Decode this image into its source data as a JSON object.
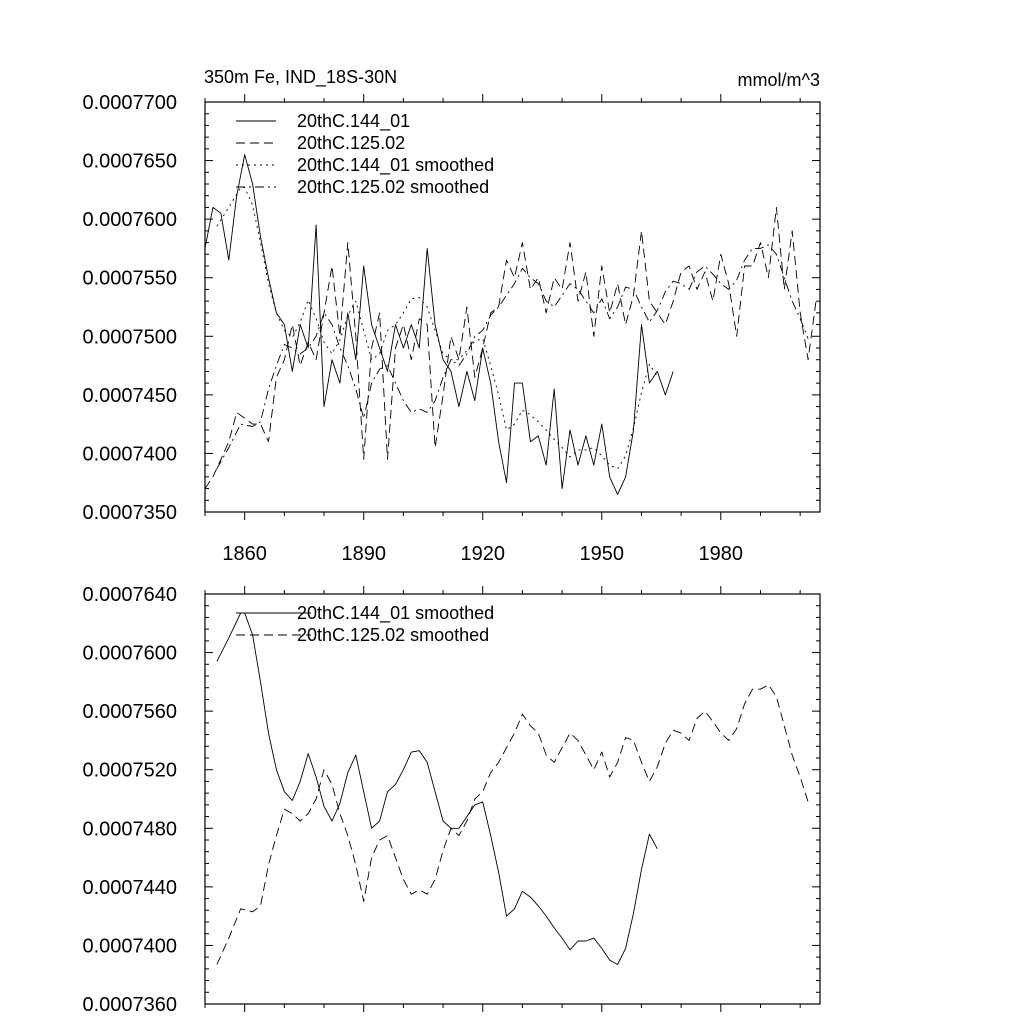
{
  "chart_data": [
    {
      "type": "line",
      "title": "350m Fe, IND_18S-30N",
      "units": "mmol/m^3",
      "xlabel": "",
      "ylabel": "",
      "xlim": [
        1850,
        2005
      ],
      "ylim": [
        0.000735,
        0.00077
      ],
      "x_ticks": [
        "1860",
        "1890",
        "1920",
        "1950",
        "1980"
      ],
      "y_ticks": [
        "0.0007350",
        "0.0007400",
        "0.0007450",
        "0.0007500",
        "0.0007550",
        "0.0007600",
        "0.0007650",
        "0.0007700"
      ],
      "legend_position": "top-left",
      "series": [
        {
          "name": "20thC.144_01",
          "style": "solid",
          "x": [
            1850,
            1852,
            1854,
            1856,
            1858,
            1860,
            1862,
            1864,
            1866,
            1868,
            1870,
            1872,
            1874,
            1876,
            1878,
            1880,
            1882,
            1884,
            1886,
            1888,
            1890,
            1892,
            1894,
            1896,
            1898,
            1900,
            1902,
            1904,
            1906,
            1908,
            1910,
            1912,
            1914,
            1916,
            1918,
            1920,
            1922,
            1924,
            1926,
            1928,
            1930,
            1932,
            1934,
            1936,
            1938,
            1940,
            1942,
            1944,
            1946,
            1948,
            1950,
            1952,
            1954,
            1956,
            1958,
            1960,
            1962,
            1964,
            1966,
            1968
          ],
          "values": [
            0.0007575,
            0.000761,
            0.0007605,
            0.0007565,
            0.000762,
            0.0007655,
            0.000763,
            0.0007585,
            0.000755,
            0.000752,
            0.000751,
            0.000747,
            0.000751,
            0.000749,
            0.0007595,
            0.000744,
            0.000748,
            0.000746,
            0.000752,
            0.000748,
            0.000756,
            0.000751,
            0.000749,
            0.000747,
            0.000751,
            0.000749,
            0.000751,
            0.000749,
            0.0007575,
            0.000751,
            0.000748,
            0.000747,
            0.000744,
            0.000747,
            0.0007445,
            0.000749,
            0.000746,
            0.000741,
            0.0007375,
            0.000746,
            0.000746,
            0.000741,
            0.0007415,
            0.000739,
            0.0007455,
            0.000737,
            0.000742,
            0.000739,
            0.0007415,
            0.000739,
            0.0007425,
            0.000738,
            0.0007365,
            0.000738,
            0.000742,
            0.000751,
            0.000746,
            0.000747,
            0.000745,
            0.000747
          ]
        },
        {
          "name": "20thC.125.02",
          "style": "dashed",
          "x": [
            1850,
            1852,
            1854,
            1856,
            1858,
            1860,
            1862,
            1864,
            1866,
            1868,
            1870,
            1872,
            1874,
            1876,
            1878,
            1880,
            1882,
            1884,
            1886,
            1888,
            1890,
            1892,
            1894,
            1896,
            1898,
            1900,
            1902,
            1904,
            1906,
            1908,
            1910,
            1912,
            1914,
            1916,
            1918,
            1920,
            1922,
            1924,
            1926,
            1928,
            1930,
            1932,
            1934,
            1936,
            1938,
            1940,
            1942,
            1944,
            1946,
            1948,
            1950,
            1952,
            1954,
            1956,
            1958,
            1960,
            1962,
            1964,
            1966,
            1968,
            1970,
            1972,
            1974,
            1976,
            1978,
            1980,
            1982,
            1984,
            1986,
            1988,
            1990,
            1992,
            1994,
            1996,
            1998,
            2000,
            2002,
            2004
          ],
          "values": [
            0.000737,
            0.000738,
            0.0007395,
            0.000741,
            0.0007435,
            0.000743,
            0.0007425,
            0.0007425,
            0.000741,
            0.0007465,
            0.000748,
            0.000751,
            0.0007475,
            0.0007495,
            0.000748,
            0.000752,
            0.000756,
            0.00075,
            0.000758,
            0.00075,
            0.0007395,
            0.000749,
            0.000752,
            0.0007395,
            0.000749,
            0.000751,
            0.000748,
            0.0007515,
            0.000751,
            0.0007405,
            0.000745,
            0.00075,
            0.000748,
            0.0007525,
            0.0007465,
            0.000749,
            0.000752,
            0.0007525,
            0.0007565,
            0.000755,
            0.000758,
            0.000754,
            0.000755,
            0.000752,
            0.000755,
            0.000754,
            0.000758,
            0.000753,
            0.0007555,
            0.00075,
            0.000756,
            0.000752,
            0.0007545,
            0.000751,
            0.0007535,
            0.000759,
            0.000753,
            0.000752,
            0.000751,
            0.000753,
            0.0007555,
            0.000756,
            0.000754,
            0.0007555,
            0.000753,
            0.000757,
            0.0007545,
            0.00075,
            0.000756,
            0.000756,
            0.000758,
            0.000755,
            0.000761,
            0.000754,
            0.000759,
            0.000752,
            0.000748,
            0.000753
          ]
        },
        {
          "name": "20thC.144_01 smoothed",
          "style": "dotted",
          "x": [
            1853,
            1856,
            1859,
            1860,
            1862,
            1864,
            1866,
            1868,
            1870,
            1872,
            1874,
            1876,
            1878,
            1880,
            1882,
            1884,
            1886,
            1888,
            1890,
            1892,
            1894,
            1896,
            1898,
            1900,
            1902,
            1904,
            1906,
            1908,
            1910,
            1912,
            1914,
            1916,
            1918,
            1920,
            1922,
            1924,
            1926,
            1928,
            1930,
            1932,
            1934,
            1936,
            1938,
            1940,
            1942,
            1944,
            1946,
            1948,
            1950,
            1952,
            1954,
            1956,
            1958,
            1960,
            1962,
            1964
          ],
          "values": [
            0.0007594,
            0.000761,
            0.0007627,
            0.0007627,
            0.0007612,
            0.000758,
            0.0007545,
            0.000752,
            0.0007505,
            0.0007499,
            0.0007512,
            0.0007531,
            0.0007515,
            0.0007495,
            0.0007485,
            0.0007497,
            0.0007518,
            0.000753,
            0.0007505,
            0.000748,
            0.0007485,
            0.0007505,
            0.000751,
            0.000752,
            0.0007532,
            0.0007533,
            0.0007525,
            0.0007505,
            0.0007485,
            0.000748,
            0.000748,
            0.0007488,
            0.0007496,
            0.0007498,
            0.0007475,
            0.000745,
            0.000742,
            0.0007425,
            0.0007437,
            0.0007433,
            0.0007427,
            0.000742,
            0.0007412,
            0.0007405,
            0.0007397,
            0.0007403,
            0.0007403,
            0.0007405,
            0.0007398,
            0.000739,
            0.0007387,
            0.0007398,
            0.0007422,
            0.0007452,
            0.0007476,
            0.0007466
          ]
        },
        {
          "name": "20thC.125.02 smoothed",
          "style": "dashdot",
          "x": [
            1853,
            1856,
            1859,
            1862,
            1864,
            1866,
            1868,
            1870,
            1872,
            1874,
            1876,
            1878,
            1880,
            1882,
            1884,
            1886,
            1888,
            1890,
            1892,
            1894,
            1896,
            1898,
            1900,
            1902,
            1904,
            1906,
            1908,
            1910,
            1912,
            1914,
            1916,
            1918,
            1920,
            1922,
            1924,
            1926,
            1928,
            1930,
            1932,
            1934,
            1936,
            1938,
            1940,
            1942,
            1944,
            1946,
            1948,
            1950,
            1952,
            1954,
            1956,
            1958,
            1960,
            1962,
            1964,
            1966,
            1968,
            1970,
            1972,
            1974,
            1976,
            1978,
            1980,
            1982,
            1984,
            1986,
            1988,
            1990,
            1992,
            1994,
            1996,
            1998,
            2000,
            2002
          ],
          "values": [
            0.0007387,
            0.0007405,
            0.0007425,
            0.0007423,
            0.0007427,
            0.0007455,
            0.0007475,
            0.0007493,
            0.000749,
            0.0007485,
            0.000749,
            0.00075,
            0.000752,
            0.000751,
            0.000749,
            0.0007475,
            0.0007455,
            0.000743,
            0.000746,
            0.0007472,
            0.0007475,
            0.000746,
            0.0007445,
            0.0007435,
            0.0007438,
            0.0007435,
            0.0007445,
            0.0007465,
            0.000748,
            0.0007475,
            0.0007485,
            0.00075,
            0.0007505,
            0.0007518,
            0.0007525,
            0.0007535,
            0.0007545,
            0.0007558,
            0.000755,
            0.0007545,
            0.000753,
            0.0007525,
            0.0007535,
            0.0007545,
            0.000754,
            0.000753,
            0.000752,
            0.0007532,
            0.0007515,
            0.0007525,
            0.0007542,
            0.000754,
            0.0007525,
            0.0007512,
            0.0007522,
            0.0007538,
            0.0007547,
            0.0007545,
            0.000754,
            0.0007555,
            0.000756,
            0.0007553,
            0.0007545,
            0.000754,
            0.0007548,
            0.0007565,
            0.0007575,
            0.0007575,
            0.0007578,
            0.000757,
            0.000755,
            0.000753,
            0.0007515,
            0.0007498
          ]
        }
      ]
    },
    {
      "type": "line",
      "title": "",
      "xlabel": "",
      "ylabel": "",
      "xlim": [
        1850,
        2005
      ],
      "ylim": [
        0.000736,
        0.000764
      ],
      "x_ticks": [],
      "y_ticks": [
        "0.0007360",
        "0.0007400",
        "0.0007440",
        "0.0007480",
        "0.0007520",
        "0.0007560",
        "0.0007600",
        "0.0007640"
      ],
      "legend_position": "top-left",
      "series": [
        {
          "name": "20thC.144_01 smoothed",
          "style": "solid",
          "x": [
            1853,
            1856,
            1859,
            1860,
            1862,
            1864,
            1866,
            1868,
            1870,
            1872,
            1874,
            1876,
            1878,
            1880,
            1882,
            1884,
            1886,
            1888,
            1890,
            1892,
            1894,
            1896,
            1898,
            1900,
            1902,
            1904,
            1906,
            1908,
            1910,
            1912,
            1914,
            1916,
            1918,
            1920,
            1922,
            1924,
            1926,
            1928,
            1930,
            1932,
            1934,
            1936,
            1938,
            1940,
            1942,
            1944,
            1946,
            1948,
            1950,
            1952,
            1954,
            1956,
            1958,
            1960,
            1962,
            1964
          ],
          "values": [
            0.0007594,
            0.000761,
            0.0007627,
            0.0007627,
            0.0007612,
            0.000758,
            0.0007545,
            0.000752,
            0.0007505,
            0.0007499,
            0.0007512,
            0.0007531,
            0.0007515,
            0.0007495,
            0.0007485,
            0.0007497,
            0.0007518,
            0.000753,
            0.0007505,
            0.000748,
            0.0007485,
            0.0007505,
            0.000751,
            0.000752,
            0.0007532,
            0.0007533,
            0.0007525,
            0.0007505,
            0.0007485,
            0.000748,
            0.000748,
            0.0007488,
            0.0007496,
            0.0007498,
            0.0007475,
            0.000745,
            0.000742,
            0.0007425,
            0.0007437,
            0.0007433,
            0.0007427,
            0.000742,
            0.0007412,
            0.0007405,
            0.0007397,
            0.0007403,
            0.0007403,
            0.0007405,
            0.0007398,
            0.000739,
            0.0007387,
            0.0007398,
            0.0007422,
            0.0007452,
            0.0007476,
            0.0007466
          ]
        },
        {
          "name": "20thC.125.02 smoothed",
          "style": "dashed",
          "x": [
            1853,
            1856,
            1859,
            1862,
            1864,
            1866,
            1868,
            1870,
            1872,
            1874,
            1876,
            1878,
            1880,
            1882,
            1884,
            1886,
            1888,
            1890,
            1892,
            1894,
            1896,
            1898,
            1900,
            1902,
            1904,
            1906,
            1908,
            1910,
            1912,
            1914,
            1916,
            1918,
            1920,
            1922,
            1924,
            1926,
            1928,
            1930,
            1932,
            1934,
            1936,
            1938,
            1940,
            1942,
            1944,
            1946,
            1948,
            1950,
            1952,
            1954,
            1956,
            1958,
            1960,
            1962,
            1964,
            1966,
            1968,
            1970,
            1972,
            1974,
            1976,
            1978,
            1980,
            1982,
            1984,
            1986,
            1988,
            1990,
            1992,
            1994,
            1996,
            1998,
            2000,
            2002
          ],
          "values": [
            0.0007387,
            0.0007405,
            0.0007425,
            0.0007423,
            0.0007427,
            0.0007455,
            0.0007475,
            0.0007493,
            0.000749,
            0.0007485,
            0.000749,
            0.00075,
            0.000752,
            0.000751,
            0.000749,
            0.0007475,
            0.0007455,
            0.000743,
            0.000746,
            0.0007472,
            0.0007475,
            0.000746,
            0.0007445,
            0.0007435,
            0.0007438,
            0.0007435,
            0.0007445,
            0.0007465,
            0.000748,
            0.0007475,
            0.0007485,
            0.00075,
            0.0007505,
            0.0007518,
            0.0007525,
            0.0007535,
            0.0007545,
            0.0007558,
            0.000755,
            0.0007545,
            0.000753,
            0.0007525,
            0.0007535,
            0.0007545,
            0.000754,
            0.000753,
            0.000752,
            0.0007532,
            0.0007515,
            0.0007525,
            0.0007542,
            0.000754,
            0.0007525,
            0.0007512,
            0.0007522,
            0.0007538,
            0.0007547,
            0.0007545,
            0.000754,
            0.0007555,
            0.000756,
            0.0007553,
            0.0007545,
            0.000754,
            0.0007548,
            0.0007565,
            0.0007575,
            0.0007575,
            0.0007578,
            0.000757,
            0.000755,
            0.000753,
            0.0007515,
            0.0007498
          ]
        }
      ]
    }
  ]
}
